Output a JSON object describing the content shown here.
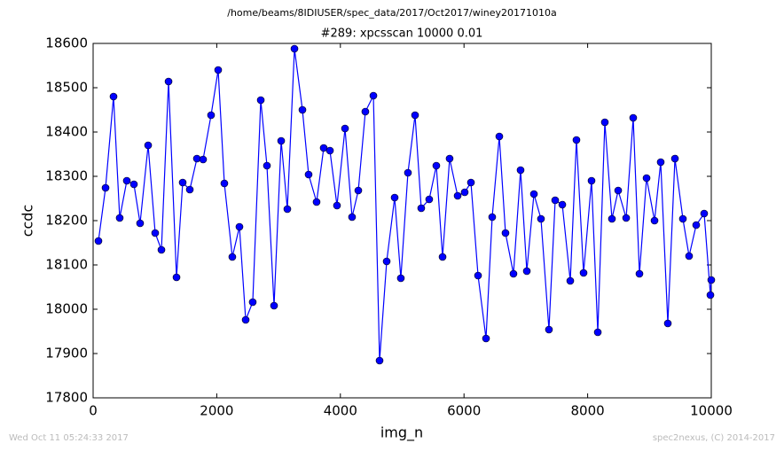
{
  "chart_data": {
    "type": "line",
    "suptitle": "/home/beams/8IDIUSER/spec_data/2017/Oct2017/winey20171010a",
    "title": "#289: xpcsscan 10000 0.01",
    "x_label": "img_n",
    "y_label": "ccdc",
    "footer_left": "Wed Oct 11 05:24:33 2017",
    "footer_right": "spec2nexus, (C) 2014-2017",
    "color": "#0000ff",
    "x": [
      86,
      201,
      330,
      430,
      545,
      660,
      760,
      890,
      1004,
      1105,
      1220,
      1349,
      1449,
      1564,
      1679,
      1779,
      1908,
      2023,
      2123,
      2252,
      2367,
      2468,
      2582,
      2712,
      2812,
      2927,
      3042,
      3142,
      3257,
      3386,
      3486,
      3615,
      3730,
      3831,
      3945,
      4075,
      4189,
      4290,
      4404,
      4534,
      4634,
      4749,
      4878,
      4978,
      5093,
      5208,
      5308,
      5437,
      5552,
      5653,
      5767,
      5897,
      6011,
      6112,
      6227,
      6356,
      6456,
      6571,
      6671,
      6800,
      6915,
      7016,
      7131,
      7245,
      7374,
      7475,
      7590,
      7719,
      7819,
      7934,
      8063,
      8164,
      8278,
      8393,
      8494,
      8623,
      8737,
      8838,
      8953,
      9082,
      9182,
      9297,
      9412,
      9541,
      9641,
      9756,
      9885,
      9986,
      10000
    ],
    "values": [
      18154,
      18274,
      18480,
      18206,
      18290,
      18282,
      18194,
      18370,
      18172,
      18134,
      18514,
      18072,
      18286,
      18270,
      18340,
      18338,
      18438,
      18540,
      18284,
      18118,
      18186,
      17976,
      18016,
      18472,
      18324,
      18008,
      18380,
      18226,
      18588,
      18450,
      18304,
      18242,
      18364,
      18358,
      18234,
      18408,
      18208,
      18268,
      18446,
      18482,
      17884,
      18108,
      18252,
      18070,
      18308,
      18438,
      18228,
      18248,
      18324,
      18118,
      18340,
      18256,
      18264,
      18286,
      18076,
      17934,
      18208,
      18390,
      18172,
      18080,
      18314,
      18086,
      18260,
      18204,
      17954,
      18246,
      18236,
      18064,
      18382,
      18082,
      18290,
      17948,
      18422,
      18204,
      18268,
      18206,
      18432,
      18080,
      18296,
      18200,
      18332,
      17968,
      18340,
      18204,
      18120,
      18190,
      18216,
      18032,
      18066
    ],
    "xlim": [
      0,
      10000
    ],
    "ylim": [
      17800,
      18600
    ],
    "xticks": [
      0,
      2000,
      4000,
      6000,
      8000,
      10000
    ],
    "yticks": [
      17800,
      17900,
      18000,
      18100,
      18200,
      18300,
      18400,
      18500,
      18600
    ]
  }
}
